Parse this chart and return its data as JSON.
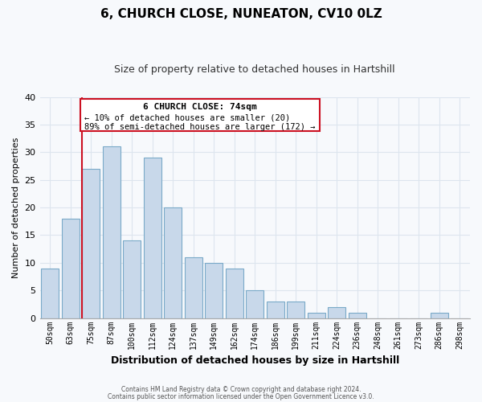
{
  "title": "6, CHURCH CLOSE, NUNEATON, CV10 0LZ",
  "subtitle": "Size of property relative to detached houses in Hartshill",
  "xlabel": "Distribution of detached houses by size in Hartshill",
  "ylabel": "Number of detached properties",
  "bar_labels": [
    "50sqm",
    "63sqm",
    "75sqm",
    "87sqm",
    "100sqm",
    "112sqm",
    "124sqm",
    "137sqm",
    "149sqm",
    "162sqm",
    "174sqm",
    "186sqm",
    "199sqm",
    "211sqm",
    "224sqm",
    "236sqm",
    "248sqm",
    "261sqm",
    "273sqm",
    "286sqm",
    "298sqm"
  ],
  "bar_heights": [
    9,
    18,
    27,
    31,
    14,
    29,
    20,
    11,
    10,
    9,
    5,
    3,
    3,
    1,
    2,
    1,
    0,
    0,
    0,
    1,
    0
  ],
  "bar_color": "#c8d8ea",
  "bar_edge_color": "#7aaac8",
  "highlight_bar_index": 2,
  "highlight_color": "#cc1122",
  "ylim": [
    0,
    40
  ],
  "yticks": [
    0,
    5,
    10,
    15,
    20,
    25,
    30,
    35,
    40
  ],
  "annotation_title": "6 CHURCH CLOSE: 74sqm",
  "annotation_line1": "← 10% of detached houses are smaller (20)",
  "annotation_line2": "89% of semi-detached houses are larger (172) →",
  "footer_line1": "Contains HM Land Registry data © Crown copyright and database right 2024.",
  "footer_line2": "Contains public sector information licensed under the Open Government Licence v3.0.",
  "background_color": "#f7f9fc",
  "grid_color": "#dde5ee",
  "title_fontsize": 11,
  "subtitle_fontsize": 9
}
